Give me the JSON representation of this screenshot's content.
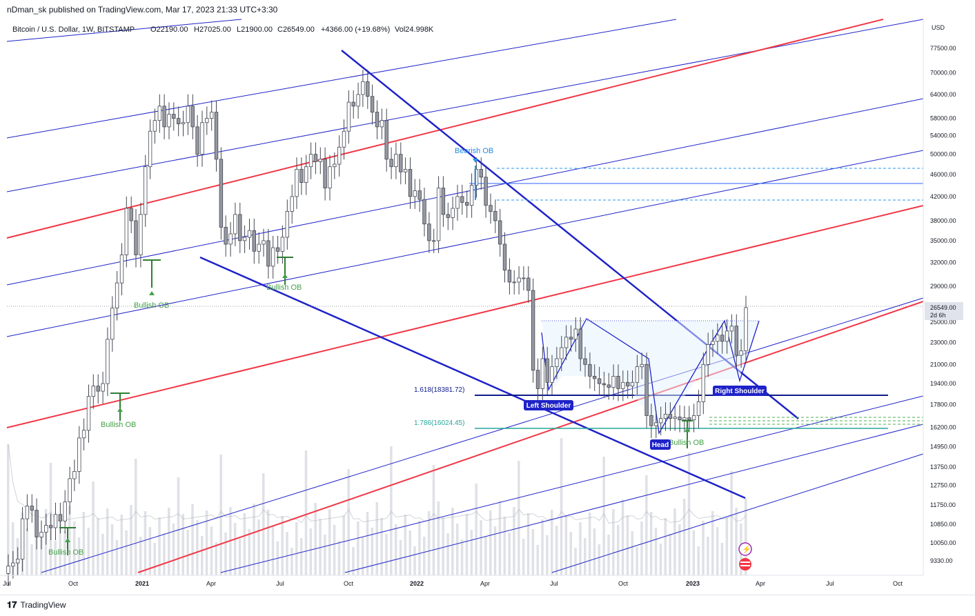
{
  "header": {
    "published": "nDman_sk published on TradingView.com, Mar 17, 2023 21:33 UTC+3:30"
  },
  "legend": {
    "symbol": "Bitcoin / U.S. Dollar, 1W, BITSTAMP",
    "open": "O22190.00",
    "high": "H27025.00",
    "low": "L21900.00",
    "close": "C26549.00",
    "change": "+4366.00 (+19.68%)",
    "volume": "Vol24.998K"
  },
  "footer": {
    "brand": "TradingView"
  },
  "chart_data": {
    "type": "candlestick",
    "currency": "USD",
    "price_axis": {
      "scale": "log",
      "ylim": [
        9000,
        86000
      ],
      "ticks": [
        "77500.00",
        "70000.00",
        "64000.00",
        "58000.00",
        "54000.00",
        "50000.00",
        "46000.00",
        "42000.00",
        "38000.00",
        "35000.00",
        "32000.00",
        "29000.00",
        "25000.00",
        "23000.00",
        "21000.00",
        "19400.00",
        "17800.00",
        "16200.00",
        "14950.00",
        "13750.00",
        "12750.00",
        "11750.00",
        "10850.00",
        "10050.00",
        "9330.00"
      ]
    },
    "time_axis": [
      "Jul",
      "Oct",
      "2021",
      "Apr",
      "Jul",
      "Oct",
      "2022",
      "Apr",
      "Jul",
      "Oct",
      "2023",
      "Apr",
      "Jul",
      "Oct"
    ],
    "last_price": {
      "value": "26549.00",
      "countdown": "2d 6h"
    },
    "annotations": {
      "fib_1618": "1.618(18381.72)",
      "fib_1786": "1.786(16024.45)",
      "bullish_ob": "Bullish OB",
      "bearish_ob": "Bearish OB",
      "left_shoulder": "Left Shoulder",
      "head": "Head",
      "right_shoulder": "Right Shoulder"
    },
    "weekly_closes": [
      9130,
      9250,
      9400,
      11100,
      11700,
      11500,
      10300,
      10500,
      10800,
      10700,
      11300,
      11000,
      11900,
      13100,
      13500,
      15500,
      16000,
      18400,
      19200,
      18800,
      19400,
      23300,
      26500,
      29400,
      33000,
      40000,
      38000,
      33000,
      39000,
      47500,
      55000,
      57500,
      61000,
      56000,
      59000,
      58000,
      56700,
      57000,
      61000,
      56000,
      50000,
      57000,
      58000,
      59500,
      49000,
      37000,
      34500,
      36000,
      39000,
      35000,
      35500,
      36500,
      33500,
      34500,
      35000,
      31500,
      34000,
      33500,
      35500,
      39500,
      42000,
      47000,
      44500,
      47500,
      50000,
      48500,
      49000,
      43500,
      47500,
      48000,
      51500,
      55000,
      62000,
      61000,
      64000,
      67500,
      63500,
      59500,
      56000,
      57500,
      49000,
      47500,
      50000,
      46500,
      47000,
      42000,
      43000,
      41500,
      37500,
      35000,
      35000,
      43500,
      39000,
      38500,
      40000,
      42000,
      41000,
      40500,
      44000,
      47000,
      45500,
      40500,
      39500,
      38000,
      34500,
      31000,
      29500,
      29500,
      30000,
      30000,
      28500,
      20500,
      19000,
      21500,
      19500,
      20800,
      21500,
      22500,
      23500,
      23300,
      24300,
      21500,
      21000,
      20000,
      19800,
      19400,
      19300,
      19100,
      20000,
      19000,
      19500,
      19200,
      19500,
      20800,
      21000,
      17000,
      16300,
      16500,
      16800,
      17100,
      16800,
      16900,
      16700,
      16850,
      16700,
      17000,
      18000,
      21000,
      22800,
      23100,
      23700,
      23100,
      24100,
      24600,
      21800,
      22200,
      26549
    ]
  }
}
